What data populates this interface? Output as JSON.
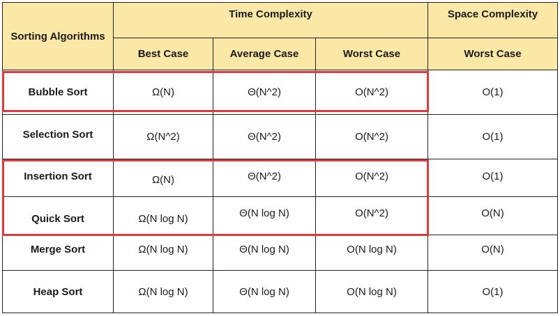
{
  "header": {
    "row_label": "Sorting Algorithms",
    "time_group": "Time Complexity",
    "space_group": "Space Complexity",
    "columns": [
      "Best Case",
      "Average Case",
      "Worst Case",
      "Worst Case"
    ]
  },
  "rows": [
    {
      "name": "Bubble Sort",
      "best": "Ω(N)",
      "average": "Θ(N^2)",
      "worst": "O(N^2)",
      "space": "O(1)"
    },
    {
      "name": "Selection Sort",
      "best": "Ω(N^2)",
      "average": "Θ(N^2)",
      "worst": "O(N^2)",
      "space": "O(1)"
    },
    {
      "name": "Insertion Sort",
      "best": "Ω(N)",
      "average": "Θ(N^2)",
      "worst": "O(N^2)",
      "space": "O(1)"
    },
    {
      "name": "Quick Sort",
      "best": "Ω(N log N)",
      "average": "Θ(N log N)",
      "worst": "O(N^2)",
      "space": "O(N)"
    },
    {
      "name": "Merge Sort",
      "best": "Ω(N log N)",
      "average": "Θ(N log N)",
      "worst": "O(N log N)",
      "space": "O(N)"
    },
    {
      "name": "Heap Sort",
      "best": "Ω(N log N)",
      "average": "Θ(N log N)",
      "worst": "O(N log N)",
      "space": "O(1)"
    }
  ],
  "highlight_color": "#e0393e",
  "header_color": "#fce8a6"
}
